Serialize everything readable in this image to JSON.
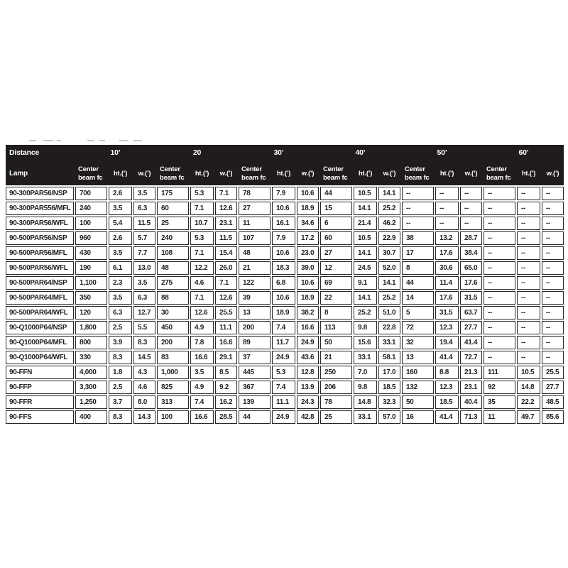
{
  "page": {
    "background": "#ffffff"
  },
  "table": {
    "distance_label": "Distance",
    "distances": [
      "10’",
      "20",
      "30’",
      "40’",
      "50’",
      "60’"
    ],
    "headers": {
      "lamp": "Lamp",
      "center_beam": "Center beam fc",
      "ht": "ht.(’)",
      "w": "w.(’)"
    },
    "colors": {
      "header_bg": "#201c1d",
      "header_text": "#ffffff",
      "cell_border": "#2b2728",
      "cell_text": "#231f20"
    },
    "empty_marker": "--",
    "rows": [
      {
        "lamp": "90-300PAR56/NSP",
        "values": [
          "700",
          "2.6",
          "3.5",
          "175",
          "5.3",
          "7.1",
          "78",
          "7.9",
          "10.6",
          "44",
          "10.5",
          "14.1",
          "--",
          "--",
          "--",
          "--",
          "--",
          "--"
        ]
      },
      {
        "lamp": "90-300PAR556/MFL",
        "values": [
          "240",
          "3.5",
          "6.3",
          "60",
          "7.1",
          "12.6",
          "27",
          "10.6",
          "18.9",
          "15",
          "14.1",
          "25.2",
          "--",
          "--",
          "--",
          "--",
          "--",
          "--"
        ]
      },
      {
        "lamp": "90-300PAR56/WFL",
        "values": [
          "100",
          "5.4",
          "11.5",
          "25",
          "10.7",
          "23.1",
          "11",
          "16.1",
          "34.6",
          "6",
          "21.4",
          "46.2",
          "--",
          "--",
          "--",
          "--",
          "--",
          "--"
        ]
      },
      {
        "lamp": "90-500PAR56/NSP",
        "values": [
          "960",
          "2.6",
          "5.7",
          "240",
          "5.3",
          "11.5",
          "107",
          "7.9",
          "17.2",
          "60",
          "10.5",
          "22.9",
          "38",
          "13.2",
          "28.7",
          "--",
          "--",
          "--"
        ]
      },
      {
        "lamp": "90-500PAR56/MFL",
        "values": [
          "430",
          "3.5",
          "7.7",
          "108",
          "7.1",
          "15.4",
          "48",
          "10.6",
          "23.0",
          "27",
          "14.1",
          "30.7",
          "17",
          "17.6",
          "38.4",
          "--",
          "--",
          "--"
        ]
      },
      {
        "lamp": "90-500PAR56/WFL",
        "values": [
          "190",
          "6.1",
          "13.0",
          "48",
          "12.2",
          "26.0",
          "21",
          "18.3",
          "39.0",
          "12",
          "24.5",
          "52.0",
          "8",
          "30.6",
          "65.0",
          "--",
          "--",
          "--"
        ]
      },
      {
        "lamp": "90-500PAR64/NSP",
        "values": [
          "1,100",
          "2.3",
          "3.5",
          "275",
          "4.6",
          "7.1",
          "122",
          "6.8",
          "10.6",
          "69",
          "9.1",
          "14.1",
          "44",
          "11.4",
          "17.6",
          "--",
          "--",
          "--"
        ]
      },
      {
        "lamp": "90-500PAR64/MFL",
        "values": [
          "350",
          "3.5",
          "6.3",
          "88",
          "7.1",
          "12.6",
          "39",
          "10.6",
          "18.9",
          "22",
          "14.1",
          "25.2",
          "14",
          "17.6",
          "31.5",
          "--",
          "--",
          "--"
        ]
      },
      {
        "lamp": "90-500PAR64/WFL",
        "values": [
          "120",
          "6.3",
          "12.7",
          "30",
          "12.6",
          "25.5",
          "13",
          "18.9",
          "38.2",
          "8",
          "25.2",
          "51.0",
          "5",
          "31.5",
          "63.7",
          "--",
          "--",
          "--"
        ]
      },
      {
        "lamp": "90-Q1000P64/NSP",
        "values": [
          "1,800",
          "2.5",
          "5.5",
          "450",
          "4.9",
          "11.1",
          "200",
          "7.4",
          "16.6",
          "113",
          "9.8",
          "22.8",
          "72",
          "12.3",
          "27.7",
          "--",
          "--",
          "--"
        ]
      },
      {
        "lamp": "90-Q1000P64/MFL",
        "values": [
          "800",
          "3.9",
          "8.3",
          "200",
          "7.8",
          "16.6",
          "89",
          "11.7",
          "24.9",
          "50",
          "15.6",
          "33.1",
          "32",
          "19.4",
          "41.4",
          "--",
          "--",
          "--"
        ]
      },
      {
        "lamp": "90-Q1000P64/WFL",
        "values": [
          "330",
          "8.3",
          "14.5",
          "83",
          "16.6",
          "29.1",
          "37",
          "24.9",
          "43.6",
          "21",
          "33.1",
          "58.1",
          "13",
          "41.4",
          "72.7",
          "--",
          "--",
          "--"
        ]
      },
      {
        "lamp": "90-FFN",
        "values": [
          "4,000",
          "1.8",
          "4.3",
          "1,000",
          "3.5",
          "8.5",
          "445",
          "5.3",
          "12.8",
          "250",
          "7.0",
          "17.0",
          "160",
          "8.8",
          "21.3",
          "111",
          "10.5",
          "25.5"
        ]
      },
      {
        "lamp": "90-FFP",
        "values": [
          "3,300",
          "2.5",
          "4.6",
          "825",
          "4.9",
          "9.2",
          "367",
          "7.4",
          "13.9",
          "206",
          "9.8",
          "18.5",
          "132",
          "12.3",
          "23.1",
          "92",
          "14.8",
          "27.7"
        ]
      },
      {
        "lamp": "90-FFR",
        "values": [
          "1,250",
          "3.7",
          "8.0",
          "313",
          "7.4",
          "16.2",
          "139",
          "11.1",
          "24.3",
          "78",
          "14.8",
          "32.3",
          "50",
          "18.5",
          "40.4",
          "35",
          "22.2",
          "48.5"
        ]
      },
      {
        "lamp": "90-FFS",
        "values": [
          "400",
          "8.3",
          "14.3",
          "100",
          "16.6",
          "28.5",
          "44",
          "24.9",
          "42.8",
          "25",
          "33.1",
          "57.0",
          "16",
          "41.4",
          "71.3",
          "11",
          "49.7",
          "85.6"
        ]
      }
    ]
  }
}
